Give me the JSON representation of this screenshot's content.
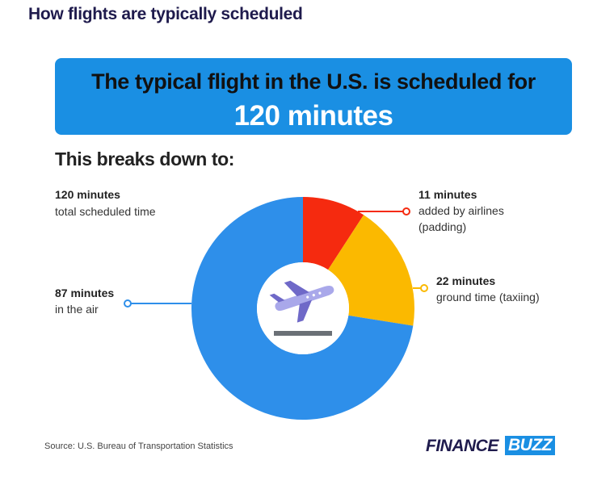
{
  "chart_data": {
    "type": "donut",
    "title": "How flights are typically scheduled",
    "headline": "The typical flight in the U.S. is scheduled for",
    "headline_value": "120 minutes",
    "subtitle": "This breaks down to:",
    "total_label": "120 minutes",
    "total_caption": "total scheduled time",
    "categories": [
      "added by airlines\n(padding)",
      "ground time (taxiing)",
      "in the air"
    ],
    "values": [
      11,
      22,
      87
    ],
    "value_labels": [
      "11 minutes",
      "22 minutes",
      "87 minutes"
    ],
    "colors": [
      "#f52a0f",
      "#fbb900",
      "#2e8fea"
    ],
    "source": "Source: U.S. Bureau of Transportation Statistics"
  },
  "logo": {
    "part1": "FINANCE",
    "part2": "BUZZ"
  }
}
